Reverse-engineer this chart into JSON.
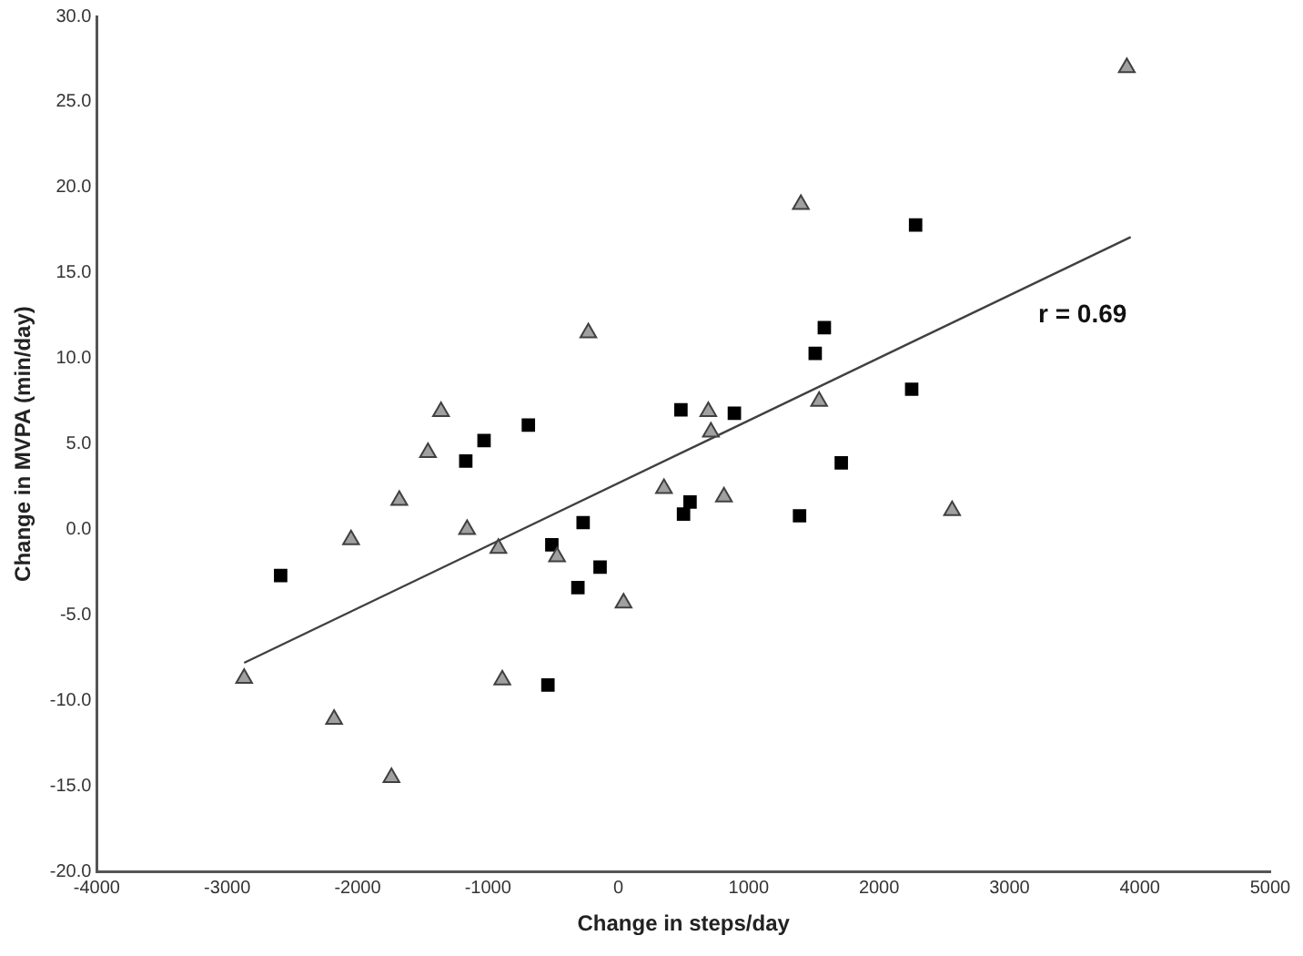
{
  "chart_data": {
    "type": "scatter",
    "xlabel": "Change in steps/day",
    "ylabel": "Change in MVPA (min/day)",
    "xlim": [
      -4000,
      5000
    ],
    "xticks": [
      -4000,
      -3000,
      -2000,
      -1000,
      0,
      1000,
      2000,
      3000,
      4000,
      5000
    ],
    "ylim": [
      -20,
      30
    ],
    "yticks": [
      {
        "value": -20,
        "label": "-20.0"
      },
      {
        "value": -15,
        "label": "-15.0"
      },
      {
        "value": -10,
        "label": "-10.0"
      },
      {
        "value": -5,
        "label": "-5.0"
      },
      {
        "value": 0,
        "label": "0.0"
      },
      {
        "value": 5,
        "label": "5.0"
      },
      {
        "value": 10,
        "label": "10.0"
      },
      {
        "value": 15,
        "label": "15.0"
      },
      {
        "value": 20,
        "label": "20.0"
      },
      {
        "value": 25,
        "label": "25.0"
      },
      {
        "value": 30,
        "label": "30.0"
      }
    ],
    "grid": false,
    "legend": false,
    "series": [
      {
        "marker": "triangle",
        "color": "#a0a0a0",
        "x": [
          3900,
          1400,
          690,
          710,
          1540,
          -230,
          -1360,
          -1460,
          -1680,
          -2050,
          -1160,
          -920,
          -470,
          40,
          350,
          -2870,
          -890,
          -2180,
          -1740,
          810,
          2560
        ],
        "values": [
          27.0,
          19.0,
          6.9,
          5.7,
          7.5,
          11.5,
          6.9,
          4.5,
          1.7,
          -0.6,
          0.0,
          -1.1,
          -1.6,
          -4.3,
          2.4,
          -8.7,
          -8.8,
          -11.1,
          -14.5,
          1.9,
          1.1
        ]
      },
      {
        "marker": "square",
        "color": "#000000",
        "x": [
          2280,
          1580,
          1510,
          2250,
          480,
          890,
          1710,
          -690,
          -1030,
          -1170,
          -2590,
          -270,
          -510,
          -140,
          -310,
          -540,
          500,
          550,
          1390
        ],
        "values": [
          17.8,
          11.8,
          10.3,
          8.2,
          7.0,
          6.8,
          3.9,
          6.1,
          5.2,
          4.0,
          -2.7,
          0.4,
          -0.9,
          -2.2,
          -3.4,
          -9.1,
          0.9,
          1.6,
          0.8
        ]
      },
      {
        "type": "line",
        "marker": "none",
        "color": "#404040",
        "x": [
          -2870,
          3930
        ],
        "values": [
          -7.8,
          17.1
        ]
      }
    ],
    "annotations": [
      "r = 0.69"
    ]
  }
}
